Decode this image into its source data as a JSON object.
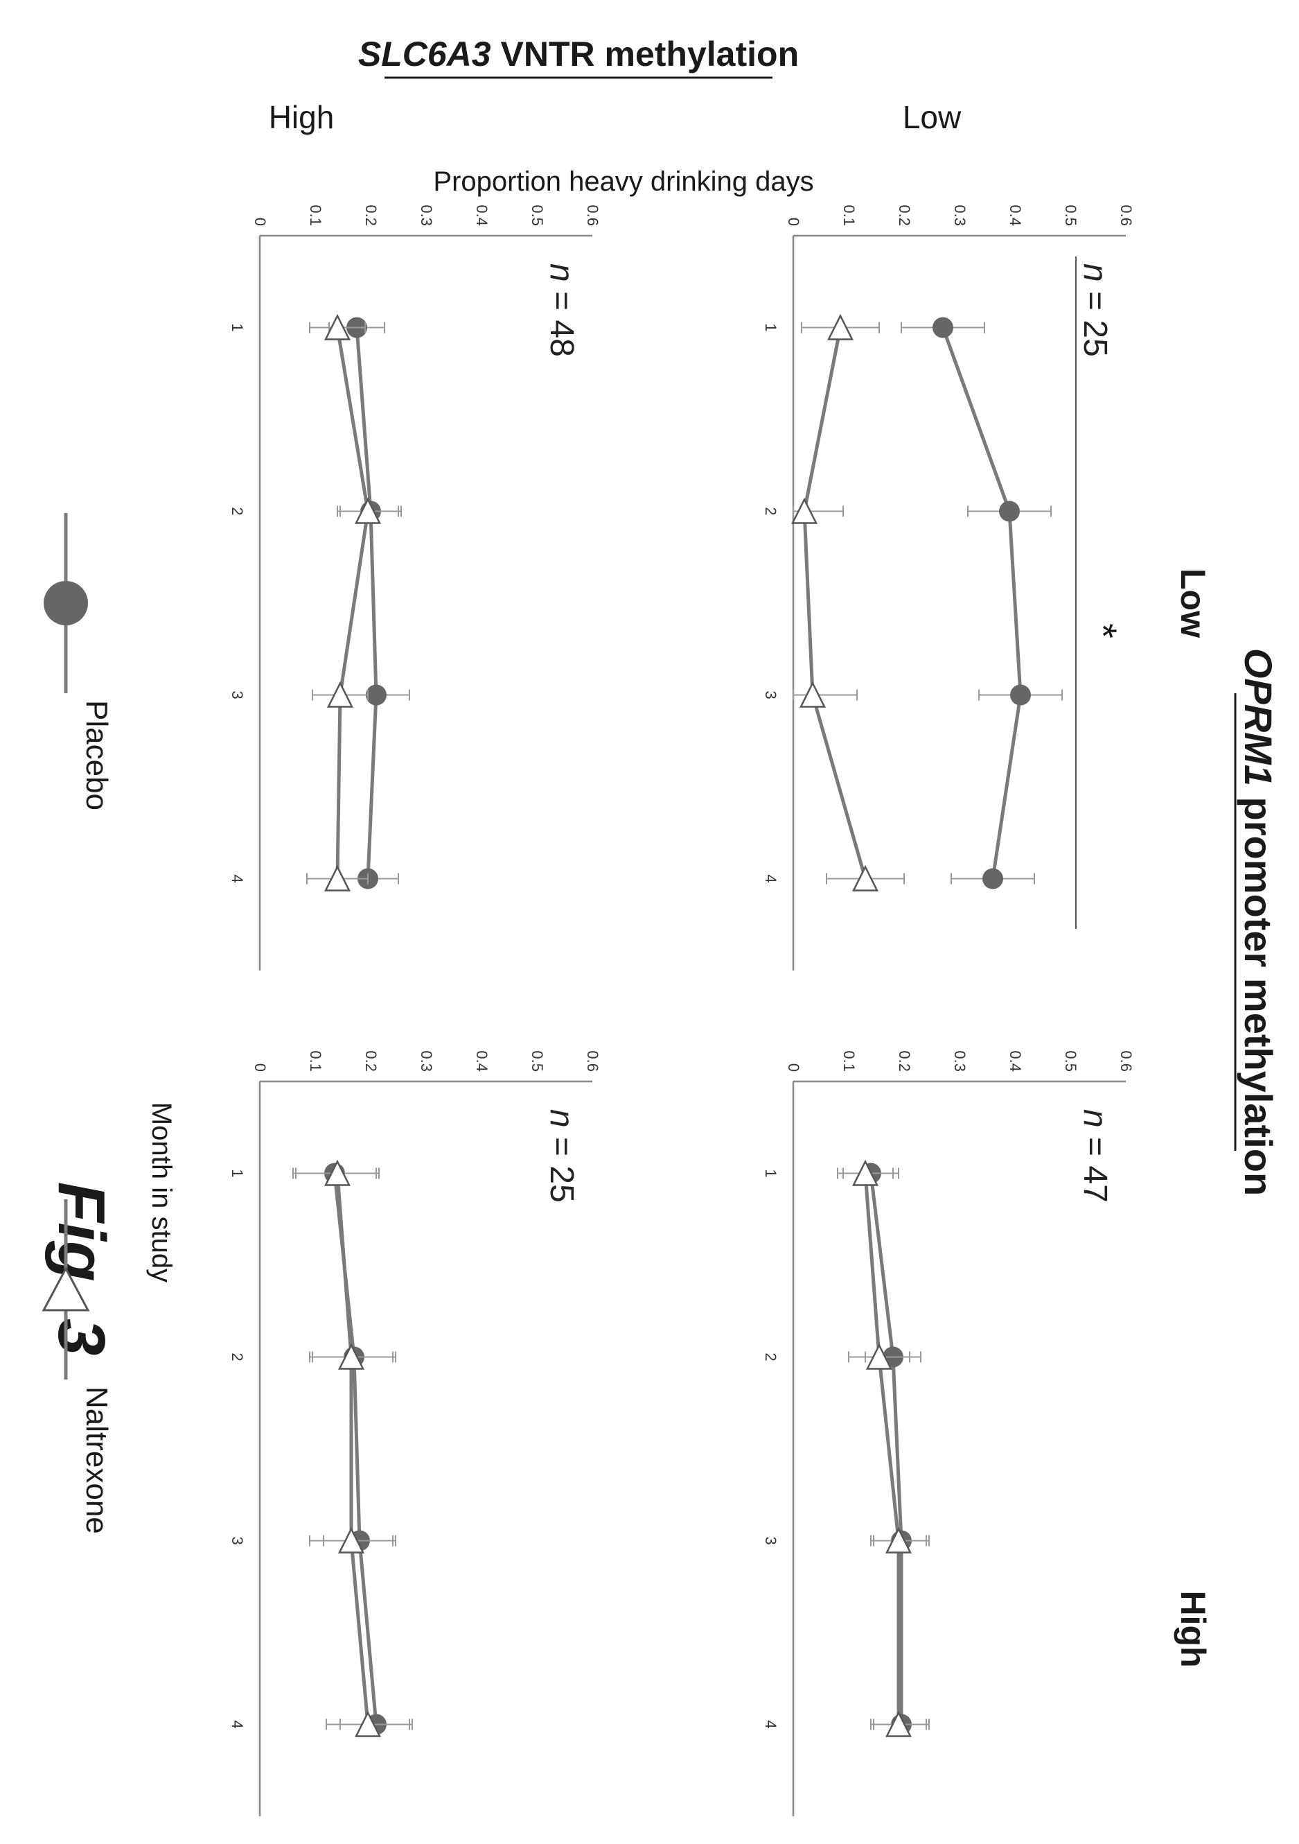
{
  "figure": {
    "top_title": "OPRM1 promoter methylation",
    "top_title_gene": "OPRM1",
    "top_title_rest": " promoter methylation",
    "left_title": "SLC6A3 VNTR methylation",
    "left_title_gene": "SLC6A3",
    "left_title_rest": " VNTR methylation",
    "column_headers": [
      "Low",
      "High"
    ],
    "row_headers": [
      "Low",
      "High"
    ],
    "y_axis_title": "Proportion heavy drinking days",
    "x_axis_title": "Month in study",
    "figure_label": "Fig. 3",
    "significance_marker": "*"
  },
  "legend": {
    "items": [
      {
        "label": "Placebo",
        "marker": "filled-circle",
        "color": "#666666"
      },
      {
        "label": "Naltrexone",
        "marker": "open-triangle",
        "color": "#ffffff"
      }
    ],
    "placement": "bottom"
  },
  "colors": {
    "line": "#7a7a7a",
    "placebo_marker": "#666666",
    "naltrexone_marker": "#ffffff",
    "error_bar": "#999999",
    "axis": "#888888"
  },
  "chart_data": [
    {
      "type": "line",
      "panel": "OPRM1 Low / SLC6A3 Low",
      "n_prefix": "n",
      "n_value": "= 25",
      "x": [
        1,
        2,
        3,
        4
      ],
      "xlabel": "",
      "ylabel": "Proportion heavy drinking days",
      "ylim": [
        0,
        0.6
      ],
      "yticks": [
        "0",
        "0.1",
        "0.2",
        "0.3",
        "0.4",
        "0.5",
        "0.6"
      ],
      "xticks": [
        "1",
        "2",
        "3",
        "4"
      ],
      "significant": true,
      "series": [
        {
          "name": "Placebo",
          "values": [
            0.27,
            0.39,
            0.41,
            0.36
          ],
          "error": [
            0.075,
            0.075,
            0.075,
            0.075
          ]
        },
        {
          "name": "Naltrexone",
          "values": [
            0.085,
            0.02,
            0.035,
            0.13
          ],
          "error": [
            0.07,
            0.07,
            0.08,
            0.07
          ]
        }
      ]
    },
    {
      "type": "line",
      "panel": "OPRM1 High / SLC6A3 Low",
      "n_prefix": "n",
      "n_value": "= 47",
      "x": [
        1,
        2,
        3,
        4
      ],
      "xlabel": "",
      "ylabel": "",
      "ylim": [
        0,
        0.6
      ],
      "yticks": [
        "0",
        "0.1",
        "0.2",
        "0.3",
        "0.4",
        "0.5",
        "0.6"
      ],
      "xticks": [
        "1",
        "2",
        "3",
        "4"
      ],
      "significant": false,
      "series": [
        {
          "name": "Placebo",
          "values": [
            0.14,
            0.18,
            0.195,
            0.195
          ],
          "error": [
            0.05,
            0.05,
            0.05,
            0.05
          ]
        },
        {
          "name": "Naltrexone",
          "values": [
            0.13,
            0.155,
            0.19,
            0.19
          ],
          "error": [
            0.05,
            0.055,
            0.05,
            0.05
          ]
        }
      ]
    },
    {
      "type": "line",
      "panel": "OPRM1 Low / SLC6A3 High",
      "n_prefix": "n",
      "n_value": "= 48",
      "x": [
        1,
        2,
        3,
        4
      ],
      "xlabel": "Month in study",
      "ylabel": "",
      "ylim": [
        0,
        0.6
      ],
      "yticks": [
        "0",
        "0.1",
        "0.2",
        "0.3",
        "0.4",
        "0.5",
        "0.6"
      ],
      "xticks": [
        "1",
        "2",
        "3",
        "4"
      ],
      "significant": false,
      "series": [
        {
          "name": "Placebo",
          "values": [
            0.175,
            0.2,
            0.21,
            0.195
          ],
          "error": [
            0.05,
            0.055,
            0.06,
            0.055
          ]
        },
        {
          "name": "Naltrexone",
          "values": [
            0.14,
            0.195,
            0.145,
            0.14
          ],
          "error": [
            0.05,
            0.055,
            0.05,
            0.055
          ]
        }
      ]
    },
    {
      "type": "line",
      "panel": "OPRM1 High / SLC6A3 High",
      "n_prefix": "n",
      "n_value": "= 25",
      "x": [
        1,
        2,
        3,
        4
      ],
      "xlabel": "",
      "ylabel": "",
      "ylim": [
        0,
        0.6
      ],
      "yticks": [
        "0",
        "0.1",
        "0.2",
        "0.3",
        "0.4",
        "0.5",
        "0.6"
      ],
      "xticks": [
        "1",
        "2",
        "3",
        "4"
      ],
      "significant": false,
      "series": [
        {
          "name": "Placebo",
          "values": [
            0.135,
            0.17,
            0.18,
            0.21
          ],
          "error": [
            0.075,
            0.075,
            0.065,
            0.065
          ]
        },
        {
          "name": "Naltrexone",
          "values": [
            0.14,
            0.165,
            0.165,
            0.195
          ],
          "error": [
            0.075,
            0.075,
            0.075,
            0.075
          ]
        }
      ]
    }
  ]
}
